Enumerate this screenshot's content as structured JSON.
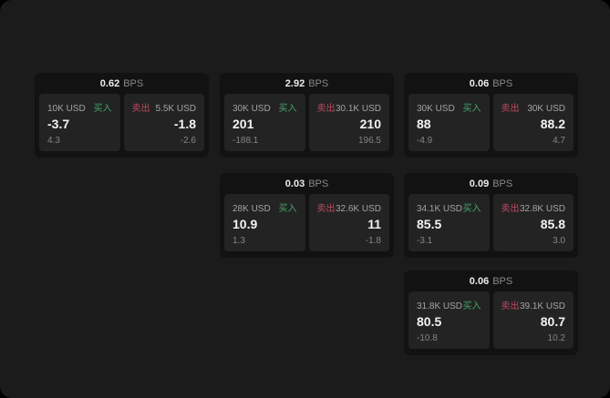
{
  "colors": {
    "canvas_bg": "#1b1b1b",
    "card_bg": "#121212",
    "panel_bg": "#232323",
    "buy_green": "#45a468",
    "sell_red": "#bf4a60"
  },
  "labels": {
    "bps_unit": "BPS"
  },
  "cards": [
    {
      "bps_value": "0.62",
      "buy": {
        "amount": "10K USD",
        "label": "买入",
        "price": "-3.7",
        "delta": "4.3"
      },
      "sell": {
        "label": "卖出",
        "amount": "5.5K USD",
        "price": "-1.8",
        "delta": "-2.6"
      }
    },
    {
      "bps_value": "2.92",
      "buy": {
        "amount": "30K USD",
        "label": "买入",
        "price": "201",
        "delta": "-188.1"
      },
      "sell": {
        "label": "卖出",
        "amount": "30.1K USD",
        "price": "210",
        "delta": "196.5"
      }
    },
    {
      "bps_value": "0.06",
      "buy": {
        "amount": "30K USD",
        "label": "买入",
        "price": "88",
        "delta": "-4.9"
      },
      "sell": {
        "label": "卖出",
        "amount": "30K USD",
        "price": "88.2",
        "delta": "4.7"
      }
    },
    {
      "bps_value": "0.03",
      "buy": {
        "amount": "28K USD",
        "label": "买入",
        "price": "10.9",
        "delta": "1.3"
      },
      "sell": {
        "label": "卖出",
        "amount": "32.6K USD",
        "price": "11",
        "delta": "-1.8"
      }
    },
    {
      "bps_value": "0.09",
      "buy": {
        "amount": "34.1K USD",
        "label": "买入",
        "price": "85.5",
        "delta": "-3.1"
      },
      "sell": {
        "label": "卖出",
        "amount": "32.8K USD",
        "price": "85.8",
        "delta": "3.0"
      }
    },
    {
      "bps_value": "0.06",
      "buy": {
        "amount": "31.8K USD",
        "label": "买入",
        "price": "80.5",
        "delta": "-10.8"
      },
      "sell": {
        "label": "卖出",
        "amount": "39.1K USD",
        "price": "80.7",
        "delta": "10.2"
      }
    }
  ]
}
